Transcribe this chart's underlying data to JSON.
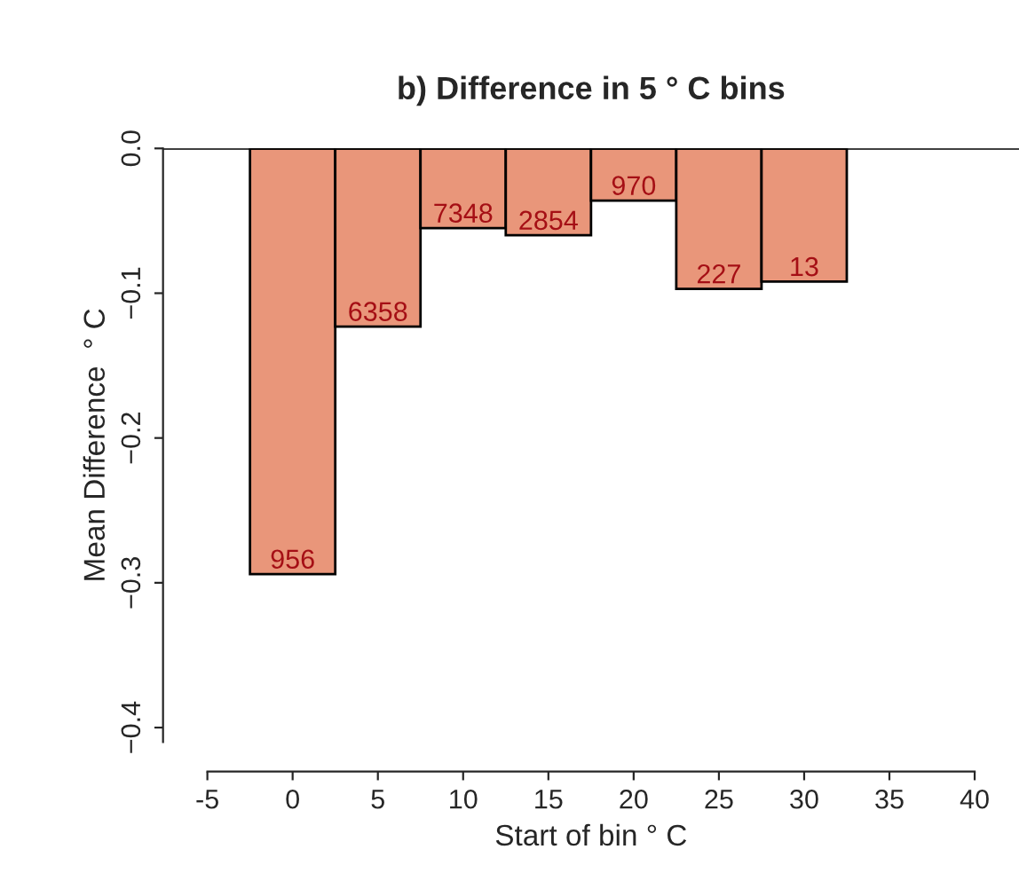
{
  "chart_data": {
    "type": "bar",
    "title": "b) Difference in 5 ° C bins",
    "xlabel": "Start of bin ° C",
    "ylabel": "Mean Difference  ° C",
    "x": [
      0,
      5,
      10,
      15,
      20,
      25,
      30
    ],
    "series": [
      {
        "color": "#e9967a",
        "values": [
          -0.294,
          -0.123,
          -0.055,
          -0.06,
          -0.036,
          -0.097,
          -0.092
        ]
      }
    ],
    "value_labels": [
      "956",
      "6358",
      "7348",
      "2854",
      "970",
      "227",
      "13"
    ],
    "xlim": [
      -7.6,
      42.6
    ],
    "xticks": [
      -5,
      0,
      5,
      10,
      15,
      20,
      25,
      30,
      35,
      40
    ],
    "ylim": [
      -0.41,
      0.0
    ],
    "yticks": [
      {
        "value": -0.4,
        "label": "−0.4"
      },
      {
        "value": -0.3,
        "label": "−0.3"
      },
      {
        "value": -0.2,
        "label": "−0.2"
      },
      {
        "value": -0.1,
        "label": "−0.1"
      },
      {
        "value": 0.0,
        "label": "0.0"
      }
    ],
    "ref_lines": [
      {
        "axis": "y",
        "value": 0.0,
        "color": "#000000"
      }
    ],
    "grid": false,
    "legend": false
  }
}
